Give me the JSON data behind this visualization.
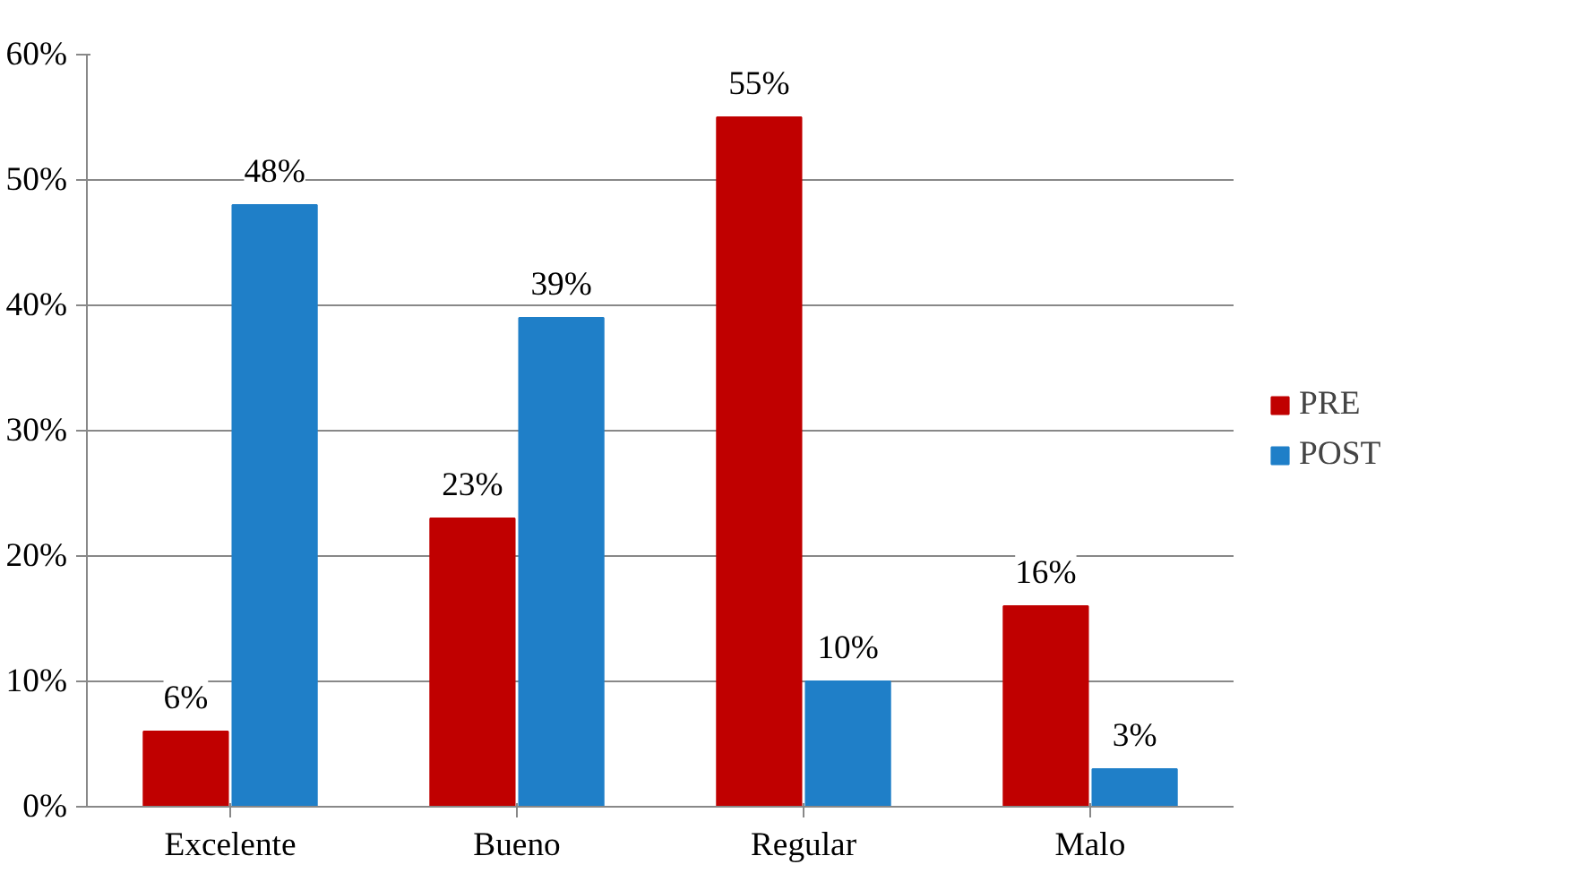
{
  "chart_data": {
    "type": "bar",
    "categories": [
      "Excelente",
      "Bueno",
      "Regular",
      "Malo"
    ],
    "series": [
      {
        "name": "PRE",
        "color": "#c00000",
        "values": [
          6,
          23,
          55,
          16
        ],
        "value_labels": [
          "6%",
          "23%",
          "55%",
          "16%"
        ]
      },
      {
        "name": "POST",
        "color": "#1f7fc8",
        "values": [
          48,
          39,
          10,
          3
        ],
        "value_labels": [
          "48%",
          "39%",
          "10%",
          "3%"
        ]
      }
    ],
    "ylim": [
      0,
      60
    ],
    "yticks": [
      {
        "value": 0,
        "label": "0%"
      },
      {
        "value": 10,
        "label": "10%"
      },
      {
        "value": 20,
        "label": "20%"
      },
      {
        "value": 30,
        "label": "30%"
      },
      {
        "value": 40,
        "label": "40%"
      },
      {
        "value": 50,
        "label": "50%"
      },
      {
        "value": 60,
        "label": "60%"
      }
    ],
    "grid": "y",
    "legend": "right"
  }
}
